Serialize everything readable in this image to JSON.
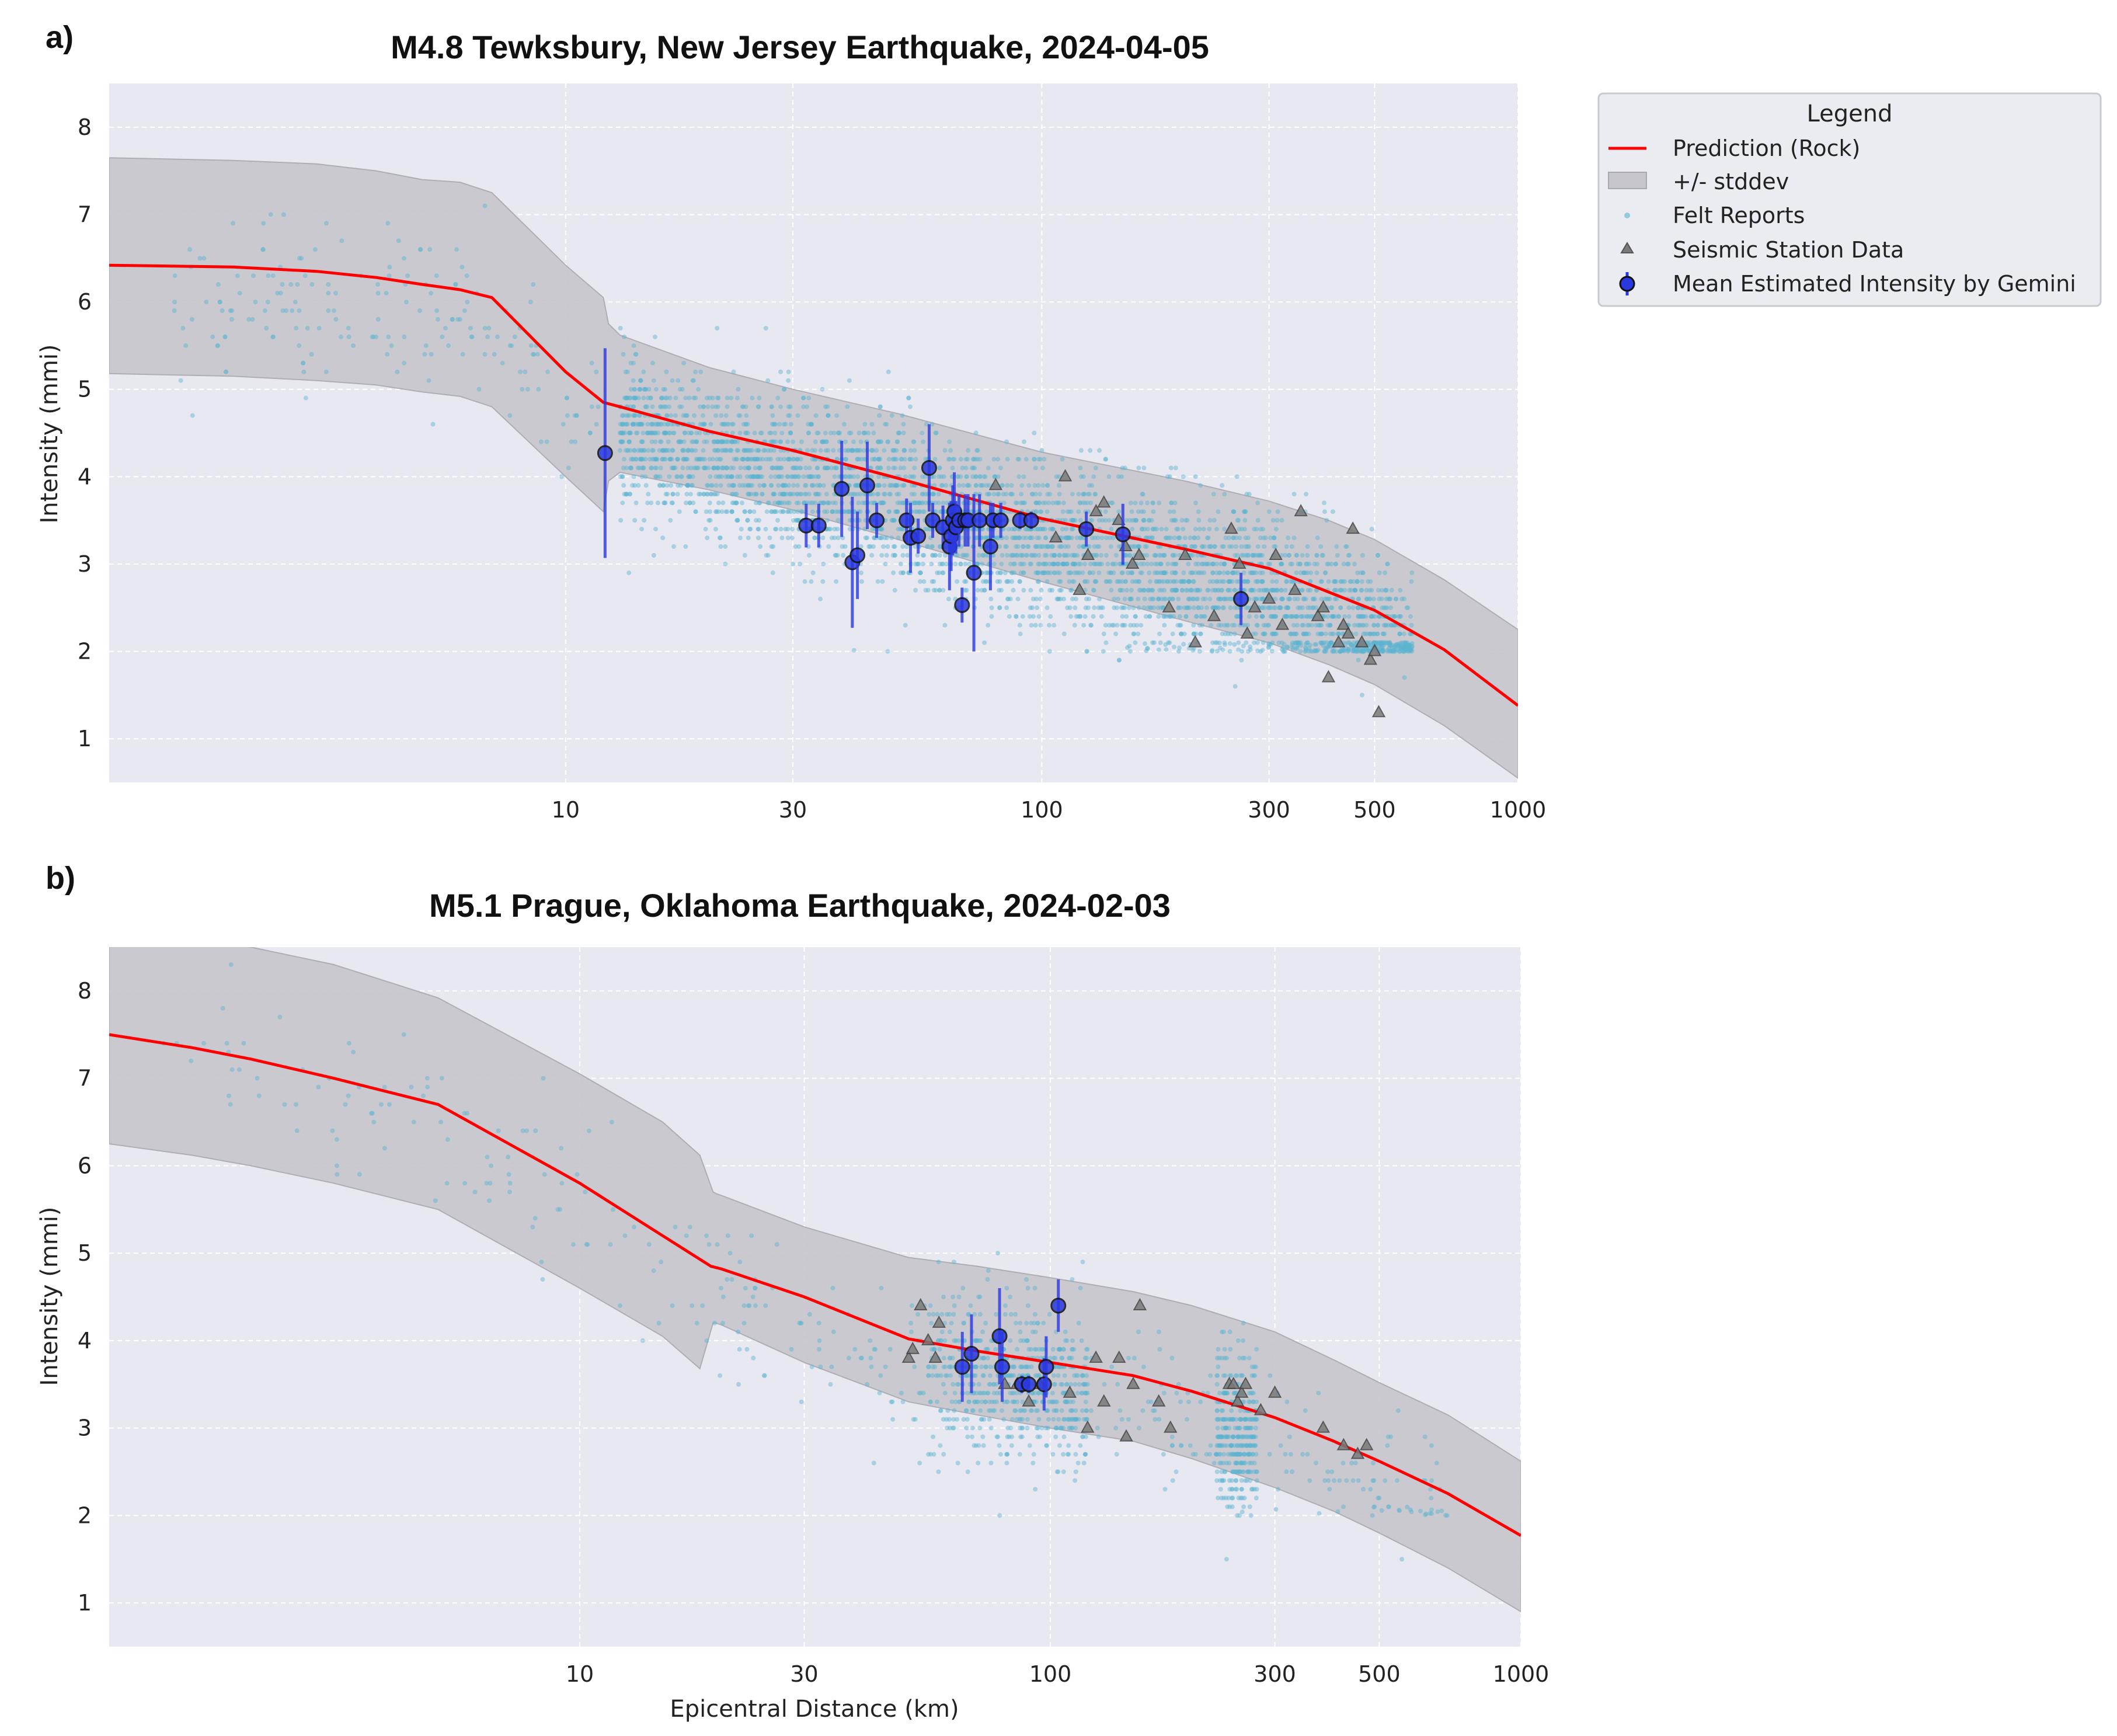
{
  "legend": {
    "title": "Legend",
    "entries": [
      {
        "key": "prediction",
        "label": "Prediction (Rock)"
      },
      {
        "key": "stddev",
        "label": "+/- stddev"
      },
      {
        "key": "felt",
        "label": "Felt Reports"
      },
      {
        "key": "station",
        "label": "Seismic Station Data"
      },
      {
        "key": "gemini",
        "label": "Mean Estimated Intensity by Gemini"
      }
    ]
  },
  "colors": {
    "plot_bg": "#e8e8f0",
    "band": "#c8c6cd",
    "prediction": "#ff0000",
    "felt": "#5ab4d0",
    "station": "#7a7a7a",
    "gemini_fill": "#2a38e0",
    "gemini_bar": "#2a38e0"
  },
  "chart_data": [
    {
      "panel_label": "a)",
      "type": "scatter",
      "title": "M4.8 Tewksbury, New Jersey Earthquake, 2024-04-05",
      "xlabel": "",
      "ylabel": "Intensity (mmi)",
      "xscale": "log",
      "xlim": [
        1.1,
        1000
      ],
      "ylim": [
        0.5,
        8.5
      ],
      "xticks": [
        10,
        30,
        100,
        300,
        500,
        1000
      ],
      "xtick_labels": [
        "10",
        "30",
        "100",
        "300",
        "500",
        "1000"
      ],
      "yticks": [
        1,
        2,
        3,
        4,
        5,
        6,
        7,
        8
      ],
      "prediction": {
        "x": [
          1.1,
          2,
          3,
          4,
          5,
          6,
          7,
          10,
          12,
          13,
          20,
          30,
          50,
          100,
          200,
          300,
          400,
          500,
          700,
          1000
        ],
        "y": [
          6.42,
          6.4,
          6.35,
          6.28,
          6.2,
          6.14,
          6.05,
          5.2,
          4.85,
          4.8,
          4.52,
          4.3,
          3.98,
          3.52,
          3.17,
          2.95,
          2.68,
          2.47,
          2.02,
          1.38
        ]
      },
      "band": {
        "x": [
          1.1,
          2,
          3,
          4,
          5,
          6,
          7,
          10,
          12,
          12.3,
          13,
          20,
          30,
          50,
          100,
          200,
          300,
          400,
          500,
          700,
          1000
        ],
        "upper": [
          7.65,
          7.62,
          7.58,
          7.5,
          7.4,
          7.37,
          7.25,
          6.42,
          6.05,
          5.75,
          5.62,
          5.25,
          5.0,
          4.72,
          4.28,
          3.95,
          3.72,
          3.5,
          3.28,
          2.82,
          2.25
        ],
        "lower": [
          5.18,
          5.15,
          5.1,
          5.05,
          4.97,
          4.92,
          4.8,
          4.0,
          3.6,
          3.95,
          4.05,
          3.85,
          3.62,
          3.28,
          2.8,
          2.35,
          2.1,
          1.85,
          1.62,
          1.15,
          0.55
        ]
      },
      "felt_reports": {
        "x_range": [
          1.5,
          1000
        ],
        "y_range": [
          1,
          6.8
        ],
        "note": "thousands of small points, dense band 13-600 km, 2.0-5.0 mmi"
      },
      "station": {
        "x": [
          80,
          107,
          112,
          120,
          125,
          130,
          135,
          145,
          150,
          155,
          160,
          185,
          200,
          210,
          230,
          250,
          260,
          270,
          280,
          300,
          310,
          320,
          340,
          350,
          380,
          390,
          400,
          420,
          430,
          440,
          450,
          470,
          490,
          500,
          510
        ],
        "y": [
          3.9,
          3.3,
          4.0,
          2.7,
          3.1,
          3.6,
          3.7,
          3.5,
          3.2,
          3.0,
          3.1,
          2.5,
          3.1,
          2.1,
          2.4,
          3.4,
          3.0,
          2.2,
          2.5,
          2.6,
          3.1,
          2.3,
          2.7,
          3.6,
          2.4,
          2.5,
          1.7,
          2.1,
          2.3,
          2.2,
          3.4,
          2.1,
          1.9,
          2.0,
          1.3
        ]
      },
      "gemini": {
        "x": [
          12.1,
          32,
          34,
          38,
          40,
          41,
          43,
          45,
          52,
          53,
          55,
          58,
          59,
          62,
          64,
          64.5,
          65,
          65.5,
          66,
          67,
          68,
          69,
          70,
          72,
          74,
          78,
          79,
          82,
          90,
          95,
          124,
          148,
          262
        ],
        "y": [
          4.27,
          3.44,
          3.44,
          3.86,
          3.02,
          3.1,
          3.9,
          3.5,
          3.5,
          3.3,
          3.32,
          4.1,
          3.5,
          3.42,
          3.2,
          3.32,
          3.5,
          3.6,
          3.42,
          3.5,
          2.53,
          3.5,
          3.5,
          2.9,
          3.5,
          3.2,
          3.5,
          3.5,
          3.5,
          3.5,
          3.4,
          3.34,
          2.6
        ],
        "err": [
          1.2,
          0.25,
          0.25,
          0.55,
          0.75,
          0.5,
          0.5,
          0.2,
          0.25,
          0.4,
          0.2,
          0.5,
          0.2,
          0.25,
          0.5,
          0.4,
          0.4,
          0.45,
          0.3,
          0.3,
          0.2,
          0.3,
          0.3,
          0.9,
          0.3,
          0.5,
          0.2,
          0.2,
          0.1,
          0.1,
          0.2,
          0.35,
          0.3
        ]
      }
    },
    {
      "panel_label": "b)",
      "type": "scatter",
      "title": "M5.1 Prague, Oklahoma Earthquake, 2024-02-03",
      "xlabel": "Epicentral Distance (km)",
      "ylabel": "Intensity (mmi)",
      "xscale": "log",
      "xlim": [
        1.0,
        1000
      ],
      "ylim": [
        0.5,
        8.5
      ],
      "xticks": [
        10,
        30,
        100,
        300,
        500,
        1000
      ],
      "xtick_labels": [
        "10",
        "30",
        "100",
        "300",
        "500",
        "1000"
      ],
      "yticks": [
        1,
        2,
        3,
        4,
        5,
        6,
        7,
        8
      ],
      "prediction": {
        "x": [
          1.0,
          1.5,
          2,
          3,
          5,
          10,
          15,
          19,
          20,
          30,
          50,
          70,
          100,
          150,
          200,
          300,
          400,
          500,
          700,
          1000
        ],
        "y": [
          7.5,
          7.35,
          7.22,
          7.0,
          6.7,
          5.8,
          5.2,
          4.85,
          4.82,
          4.5,
          4.02,
          3.88,
          3.75,
          3.6,
          3.42,
          3.12,
          2.85,
          2.62,
          2.25,
          1.77
        ]
      },
      "band": {
        "x": [
          1.0,
          1.5,
          2,
          3,
          5,
          10,
          15,
          18,
          19.2,
          19.5,
          20,
          30,
          50,
          70,
          100,
          150,
          200,
          300,
          400,
          500,
          700,
          1000
        ],
        "upper": [
          8.8,
          8.6,
          8.5,
          8.3,
          7.92,
          7.05,
          6.5,
          6.12,
          5.7,
          5.68,
          5.66,
          5.3,
          4.95,
          4.85,
          4.72,
          4.56,
          4.4,
          4.1,
          3.78,
          3.52,
          3.15,
          2.62
        ],
        "lower": [
          6.25,
          6.12,
          6.0,
          5.8,
          5.5,
          4.6,
          4.05,
          3.68,
          4.2,
          4.2,
          4.18,
          3.75,
          3.3,
          3.15,
          3.0,
          2.85,
          2.65,
          2.32,
          2.05,
          1.8,
          1.4,
          0.9
        ]
      },
      "felt_reports": {
        "x_range": [
          1.3,
          800
        ],
        "y_range": [
          1.9,
          8.0
        ],
        "note": "hundreds of small points, densest 60-110 km and 230-270 km"
      },
      "station": {
        "x": [
          50,
          51,
          53,
          55,
          57,
          58,
          80,
          85,
          90,
          95,
          110,
          120,
          125,
          130,
          140,
          145,
          150,
          155,
          170,
          180,
          240,
          245,
          250,
          255,
          260,
          280,
          300,
          380,
          420,
          450,
          470
        ],
        "y": [
          3.8,
          3.9,
          4.4,
          4.0,
          3.8,
          4.2,
          3.5,
          3.5,
          3.3,
          3.5,
          3.4,
          3.0,
          3.8,
          3.3,
          3.8,
          2.9,
          3.5,
          4.4,
          3.3,
          3.0,
          3.5,
          3.5,
          3.3,
          3.4,
          3.5,
          3.2,
          3.4,
          3.0,
          2.8,
          2.7,
          2.8
        ]
      },
      "gemini": {
        "x": [
          65,
          68,
          78,
          79,
          87,
          90,
          97,
          98,
          104
        ],
        "y": [
          3.7,
          3.85,
          4.05,
          3.7,
          3.5,
          3.5,
          3.5,
          3.7,
          4.4
        ],
        "err": [
          0.4,
          0.45,
          0.55,
          0.4,
          0.1,
          0.1,
          0.3,
          0.35,
          0.3
        ]
      }
    }
  ]
}
